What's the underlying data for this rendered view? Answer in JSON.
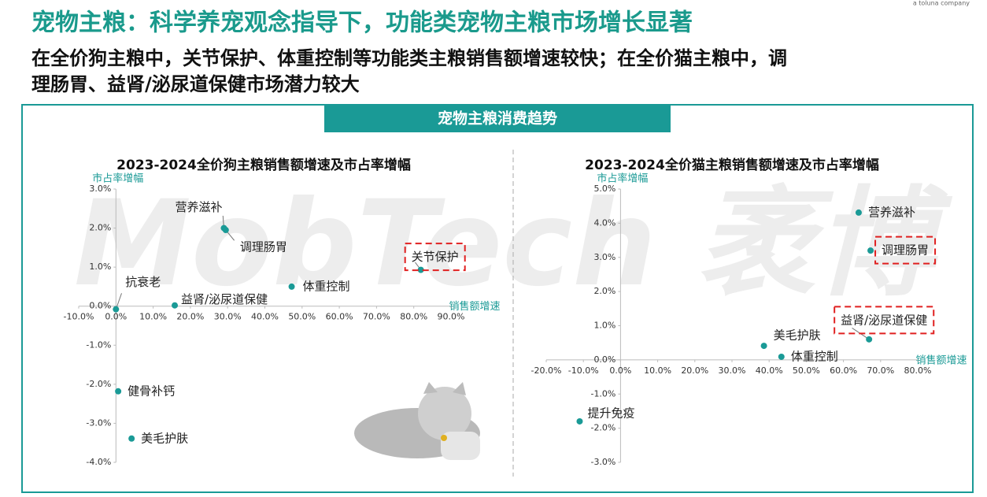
{
  "header": {
    "title": "宠物主粮：科学养宠观念指导下，功能类宠物主粮市场增长显著",
    "subtitle_lines": [
      "在全价狗主粮中，关节保护、体重控制等功能类主粮销售额增速较快；在全价猫主粮中，调",
      "理肠胃、益肾/泌尿道保健市场潜力较大"
    ],
    "logo": "a toluna company"
  },
  "section_title": "宠物主粮消费趋势",
  "watermark": "MobTech 袤博",
  "chart_data": [
    {
      "type": "scatter",
      "title": "2023-2024全价狗主粮销售额增速及市占率增幅",
      "x_label": "销售额增速",
      "y_label": "市占率增幅",
      "color": "#1a9a96",
      "labels": [
        "营养滋补",
        "调理肠胃",
        "关节保护",
        "体重控制",
        "益肾/泌尿道保健",
        "抗衰老",
        "健骨补钙",
        "美毛护肤"
      ],
      "x": [
        29,
        29.5,
        81.9,
        47.2,
        15.8,
        0,
        0.6,
        4.2
      ],
      "values": [
        2.0,
        1.95,
        0.93,
        0.5,
        0.02,
        -0.08,
        -2.18,
        -3.39
      ],
      "highlighted": [
        2
      ],
      "xlim": [
        -10,
        90
      ],
      "ylim": [
        -4,
        3
      ],
      "xticks": [
        {
          "value": -10,
          "label": "-10.0%"
        },
        {
          "value": 0,
          "label": "0.0%"
        },
        {
          "value": 10,
          "label": "10.0%"
        },
        {
          "value": 20,
          "label": "20.0%"
        },
        {
          "value": 30,
          "label": "30.0%"
        },
        {
          "value": 40,
          "label": "40.0%"
        },
        {
          "value": 50,
          "label": "50.0%"
        },
        {
          "value": 60,
          "label": "60.0%"
        },
        {
          "value": 70,
          "label": "70.0%"
        },
        {
          "value": 80,
          "label": "80.0%"
        },
        {
          "value": 90,
          "label": "90.0%"
        }
      ],
      "yticks": [
        {
          "value": 3,
          "label": "3.0%"
        },
        {
          "value": 2,
          "label": "2.0%"
        },
        {
          "value": 1,
          "label": "1.0%"
        },
        {
          "value": 0,
          "label": "0.0%"
        },
        {
          "value": -1,
          "label": "-1.0%"
        },
        {
          "value": -2,
          "label": "-2.0%"
        },
        {
          "value": -3,
          "label": "-3.0%"
        },
        {
          "value": -4,
          "label": "-4.0%"
        }
      ]
    },
    {
      "type": "scatter",
      "title": "2023-2024全价猫主粮销售额增速及市占率增幅",
      "x_label": "销售额增速",
      "y_label": "市占率增幅",
      "color": "#1a9a96",
      "labels": [
        "营养滋补",
        "调理肠胃",
        "益肾/泌尿道保健",
        "美毛护肤",
        "体重控制",
        "提升免疫"
      ],
      "x": [
        64.1,
        67.3,
        66.9,
        38.6,
        43.3,
        -11.0
      ],
      "values": [
        4.31,
        3.2,
        0.6,
        0.41,
        0.09,
        -1.8
      ],
      "highlighted": [
        1,
        2
      ],
      "xlim": [
        -20,
        80
      ],
      "ylim": [
        -3,
        5
      ],
      "xticks": [
        {
          "value": -20,
          "label": "-20.0%"
        },
        {
          "value": -10,
          "label": "-10.0%"
        },
        {
          "value": 0,
          "label": "0.0%"
        },
        {
          "value": 10,
          "label": "10.0%"
        },
        {
          "value": 20,
          "label": "20.0%"
        },
        {
          "value": 30,
          "label": "30.0%"
        },
        {
          "value": 40,
          "label": "40.0%"
        },
        {
          "value": 50,
          "label": "50.0%"
        },
        {
          "value": 60,
          "label": "60.0%"
        },
        {
          "value": 70,
          "label": "70.0%"
        },
        {
          "value": 80,
          "label": "80.0%"
        }
      ],
      "yticks": [
        {
          "value": 5,
          "label": "5.0%"
        },
        {
          "value": 4,
          "label": "4.0%"
        },
        {
          "value": 3,
          "label": "3.0%"
        },
        {
          "value": 2,
          "label": "2.0%"
        },
        {
          "value": 1,
          "label": "1.0%"
        },
        {
          "value": 0,
          "label": "0.0%"
        },
        {
          "value": -1,
          "label": "-1.0%"
        },
        {
          "value": -2,
          "label": "-2.0%"
        },
        {
          "value": -3,
          "label": "-3.0%"
        }
      ]
    }
  ]
}
